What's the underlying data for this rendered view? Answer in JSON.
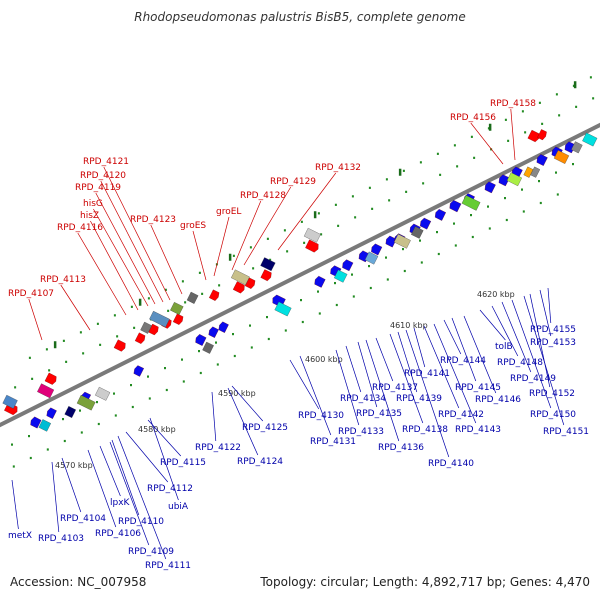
{
  "title": "Rhodopseudomonas palustris BisB5, complete genome",
  "accession_text": "Accession: NC_007958",
  "summary_text": "Topology: circular; Length: 4,892,717 bp; Genes: 4,470",
  "colors": {
    "forward_label": "#cc0000",
    "reverse_label": "#0000aa",
    "forward_gene": "#ff0000",
    "reverse_gene": "#0a0aee",
    "backbone": "#888888",
    "tick": "#228b22"
  },
  "ruler_labels": [
    "4570 kbp",
    "4580 kbp",
    "4590 kbp",
    "4600 kbp",
    "4610 kbp",
    "4620 kbp"
  ],
  "forward_genes": [
    "RPD_4107",
    "RPD_4113",
    "RPD_4116",
    "hisZ",
    "hisG",
    "RPD_4119",
    "RPD_4120",
    "RPD_4121",
    "RPD_4123",
    "groES",
    "groEL",
    "RPD_4128",
    "RPD_4129",
    "RPD_4132",
    "RPD_4156",
    "RPD_4158"
  ],
  "reverse_genes": [
    "metX",
    "RPD_4103",
    "RPD_4104",
    "RPD_4106",
    "lpxK",
    "RPD_4109",
    "RPD_4110",
    "RPD_4111",
    "RPD_4112",
    "ubiA",
    "RPD_4115",
    "RPD_4122",
    "RPD_4124",
    "RPD_4125",
    "RPD_4130",
    "RPD_4131",
    "RPD_4133",
    "RPD_4134",
    "RPD_4135",
    "RPD_4136",
    "RPD_4137",
    "RPD_4138",
    "RPD_4139",
    "RPD_4140",
    "RPD_4141",
    "RPD_4142",
    "RPD_4143",
    "RPD_4144",
    "RPD_4145",
    "RPD_4146",
    "tolB",
    "RPD_4148",
    "RPD_4149",
    "RPD_4150",
    "RPD_4151",
    "RPD_4152",
    "RPD_4153",
    "RPD_4155"
  ]
}
